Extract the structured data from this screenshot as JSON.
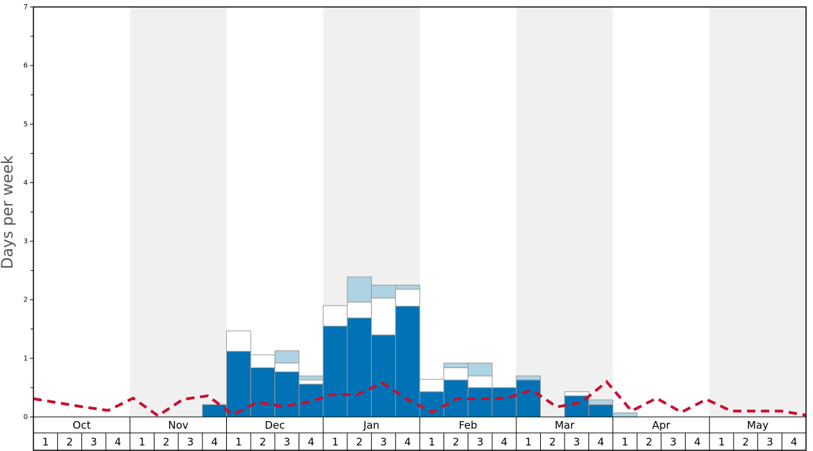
{
  "chart_data": {
    "type": "bar",
    "stacked": true,
    "y_label": "Days per week",
    "months": [
      "Oct",
      "Nov",
      "Dec",
      "Jan",
      "Feb",
      "Mar",
      "Apr",
      "May"
    ],
    "categories": [
      "1",
      "2",
      "3",
      "4",
      "1",
      "2",
      "3",
      "4",
      "1",
      "2",
      "3",
      "4",
      "1",
      "2",
      "3",
      "4",
      "1",
      "2",
      "3",
      "4",
      "1",
      "2",
      "3",
      "4",
      "1",
      "2",
      "3",
      "4",
      "1",
      "2",
      "3",
      "4"
    ],
    "series": [
      {
        "color": "#0072b5",
        "values": [
          0,
          0,
          0,
          0,
          0,
          0,
          0,
          0.21,
          1.12,
          0.84,
          0.77,
          0.56,
          1.55,
          1.69,
          1.4,
          1.89,
          0.43,
          0.63,
          0.5,
          0.5,
          0.63,
          0,
          0.36,
          0.21,
          0,
          0,
          0,
          0,
          0,
          0,
          0,
          0
        ]
      },
      {
        "color": "#ffffff",
        "values": [
          0,
          0,
          0,
          0,
          0,
          0,
          0,
          0,
          0.35,
          0.22,
          0.15,
          0.07,
          0.35,
          0.27,
          0.63,
          0.29,
          0.21,
          0.21,
          0.2,
          0,
          0,
          0,
          0.07,
          0,
          0,
          0,
          0,
          0,
          0,
          0,
          0,
          0
        ]
      },
      {
        "color": "#aed3e3",
        "values": [
          0,
          0,
          0,
          0,
          0,
          0,
          0,
          0,
          0,
          0,
          0.21,
          0.07,
          0,
          0.43,
          0.22,
          0.07,
          0,
          0.08,
          0.22,
          0,
          0.07,
          0,
          0,
          0.08,
          0.07,
          0,
          0,
          0,
          0,
          0,
          0,
          0
        ]
      }
    ],
    "line": {
      "type": "line",
      "color": "#c8102e",
      "dashed": true,
      "values": [
        0.31,
        0.24,
        0.17,
        0.11,
        0.32,
        0.02,
        0.3,
        0.36,
        0.04,
        0.25,
        0.18,
        0.25,
        0.38,
        0.38,
        0.58,
        0.3,
        0.08,
        0.31,
        0.31,
        0.32,
        0.46,
        0.17,
        0.25,
        0.6,
        0.1,
        0.32,
        0.08,
        0.3,
        0.1,
        0.1,
        0.1,
        0.03
      ]
    },
    "ylim": [
      0,
      7
    ],
    "yticks": [
      0,
      1,
      2,
      3,
      4,
      5,
      6,
      7
    ],
    "shade_color": "#f0f0f0"
  }
}
